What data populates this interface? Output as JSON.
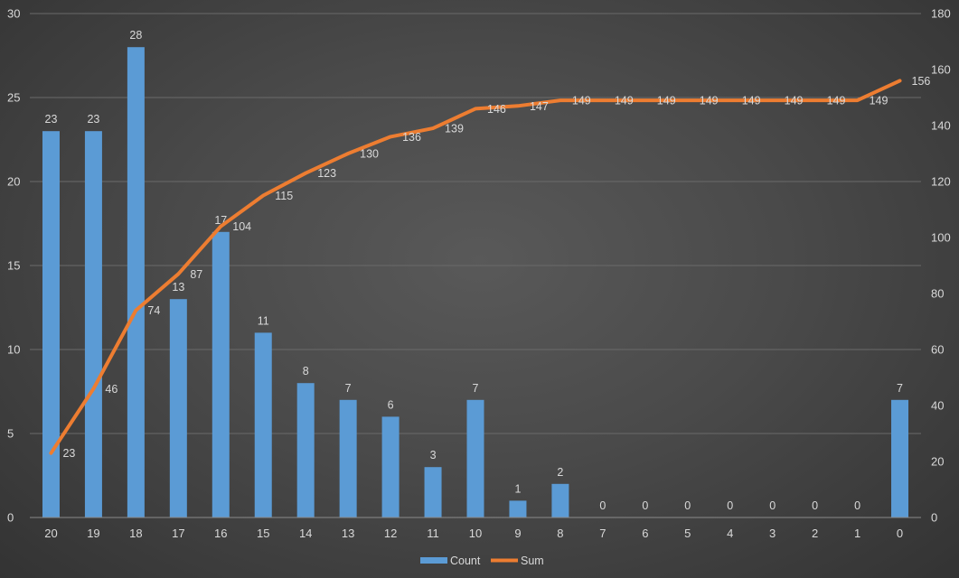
{
  "chart_data": {
    "type": "bar+line",
    "categories": [
      "20",
      "19",
      "18",
      "17",
      "16",
      "15",
      "14",
      "13",
      "12",
      "11",
      "10",
      "9",
      "8",
      "7",
      "6",
      "5",
      "4",
      "3",
      "2",
      "1",
      "0"
    ],
    "series": [
      {
        "name": "Count",
        "type": "bar",
        "axis": "left",
        "color": "#5b9bd5",
        "values": [
          23,
          23,
          28,
          13,
          17,
          11,
          8,
          7,
          6,
          3,
          7,
          1,
          2,
          0,
          0,
          0,
          0,
          0,
          0,
          0,
          7
        ]
      },
      {
        "name": "Sum",
        "type": "line",
        "axis": "right",
        "color": "#ed7d31",
        "values": [
          23,
          46,
          74,
          87,
          104,
          115,
          123,
          130,
          136,
          139,
          146,
          147,
          149,
          149,
          149,
          149,
          149,
          149,
          149,
          149,
          156
        ]
      }
    ],
    "ylim": [
      0,
      30
    ],
    "y_ticks": [
      "0",
      "5",
      "10",
      "15",
      "20",
      "25",
      "30"
    ],
    "y2lim": [
      0,
      180
    ],
    "y2_ticks": [
      "0",
      "20",
      "40",
      "60",
      "80",
      "100",
      "120",
      "140",
      "160",
      "180"
    ],
    "grid": true,
    "legend_position": "bottom"
  }
}
